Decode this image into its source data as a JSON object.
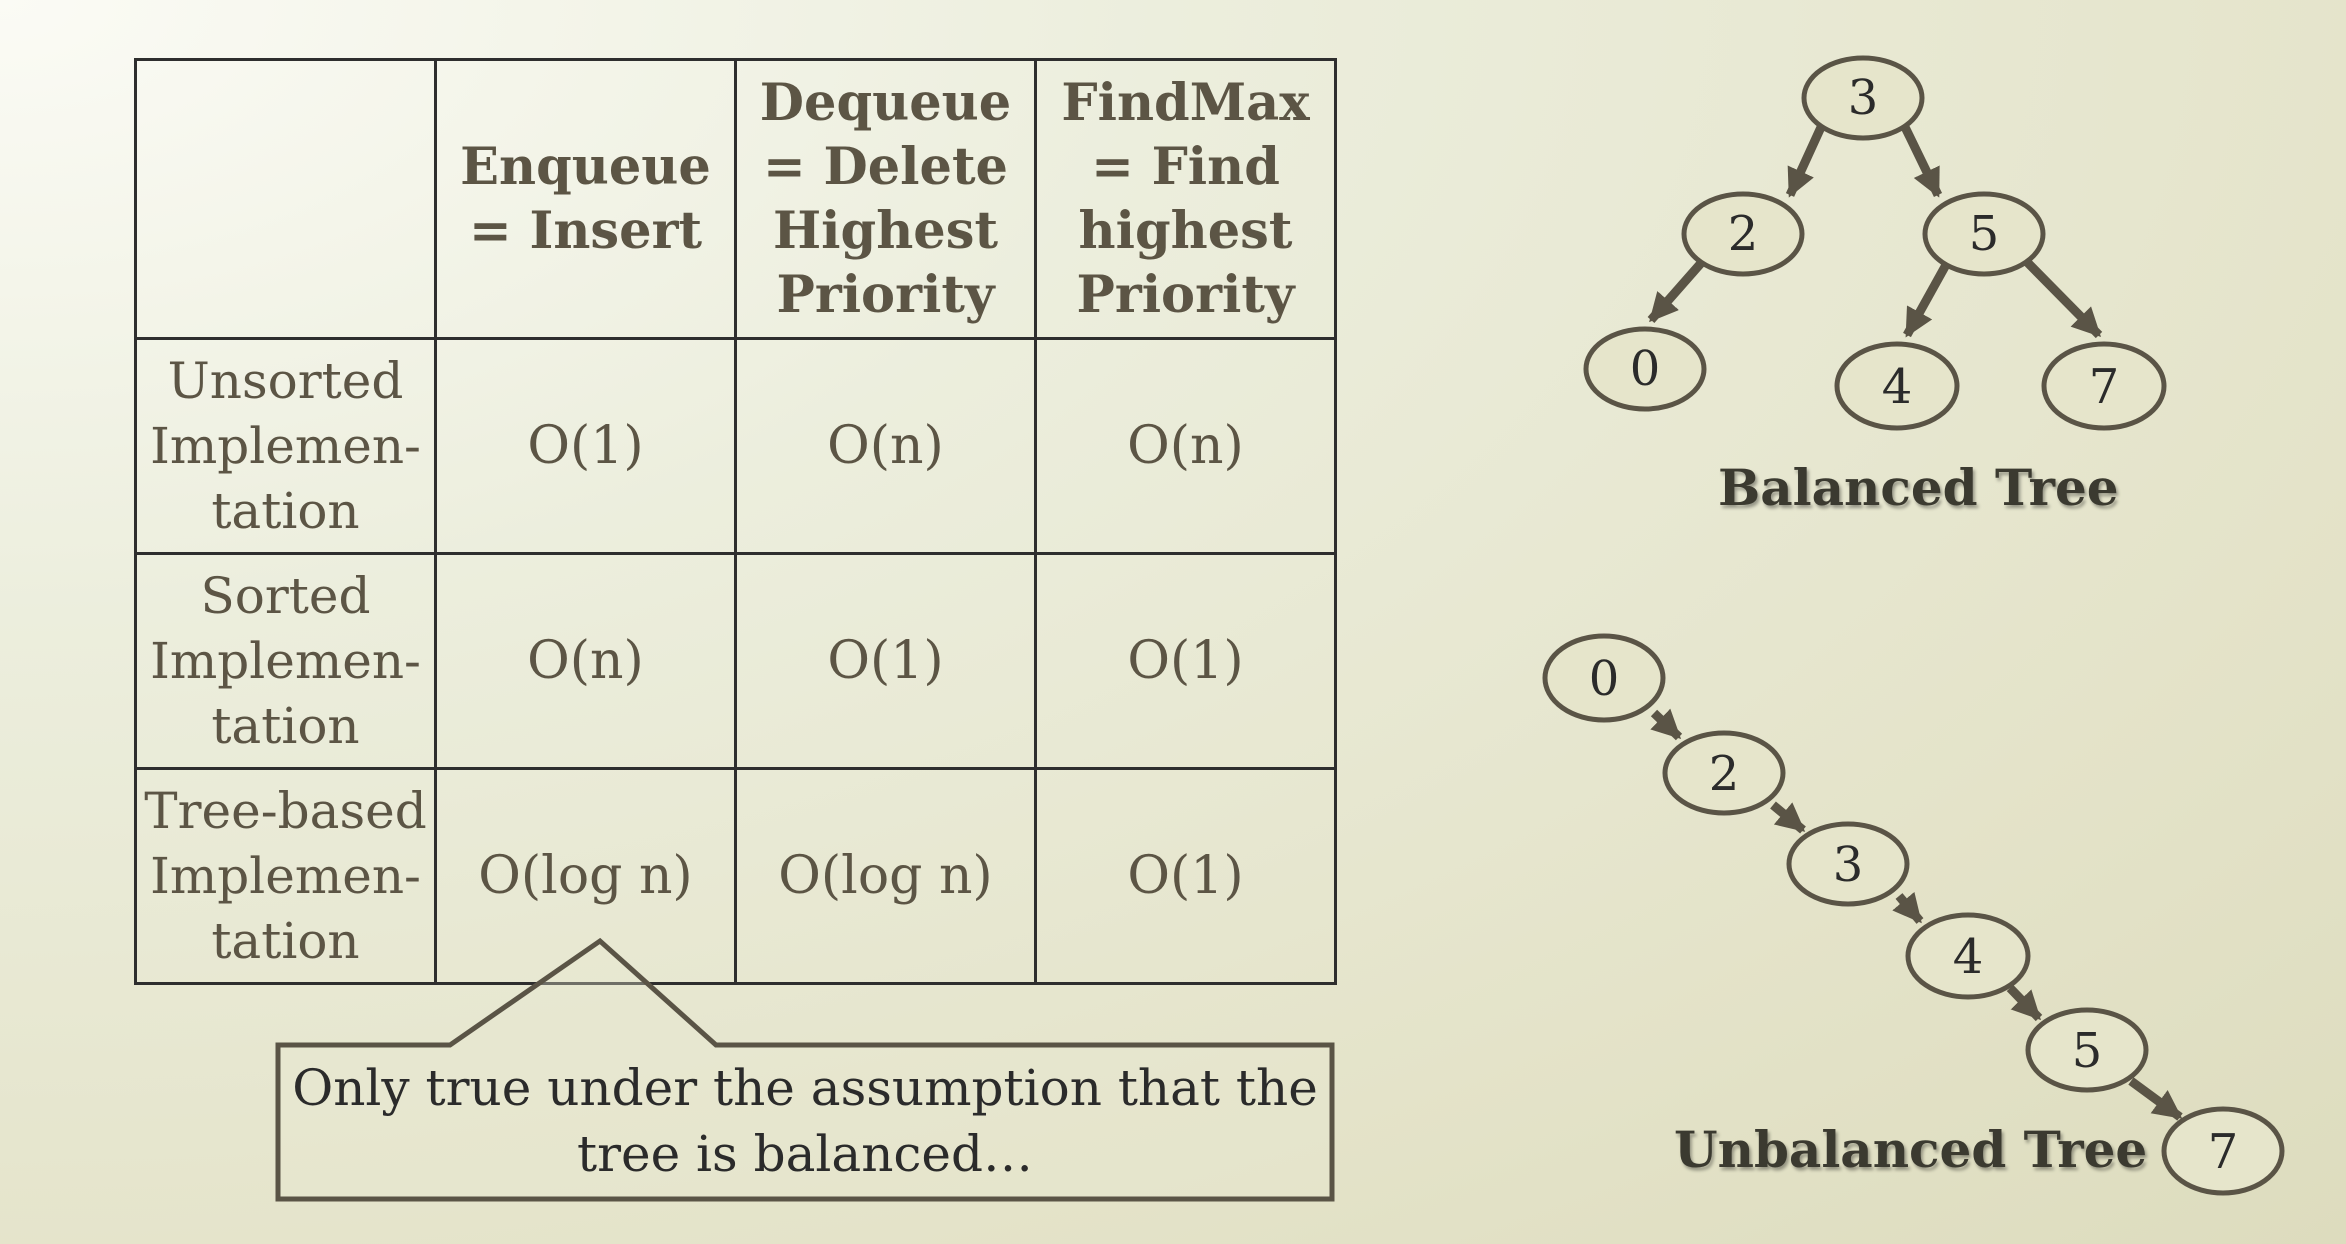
{
  "table": {
    "headers": [
      "",
      "Enqueue\n= Insert",
      "Dequeue\n= Delete\nHighest\nPriority",
      "FindMax\n= Find\nhighest\nPriority"
    ],
    "rows": [
      {
        "label": "Unsorted\nImplemen-\ntation",
        "values": [
          "O(1)",
          "O(n)",
          "O(n)"
        ]
      },
      {
        "label": "Sorted\nImplemen-\ntation",
        "values": [
          "O(n)",
          "O(1)",
          "O(1)"
        ]
      },
      {
        "label": "Tree-based\nImplemen-\ntation",
        "values": [
          "O(log n)",
          "O(log n)",
          "O(1)"
        ]
      }
    ]
  },
  "callout": {
    "text": "Only true under the assumption that the\ntree is balanced…"
  },
  "balanced_tree": {
    "caption": "Balanced Tree",
    "nodes": [
      "3",
      "2",
      "5",
      "0",
      "4",
      "7"
    ]
  },
  "unbalanced_tree": {
    "caption": "Unbalanced Tree",
    "nodes": [
      "0",
      "2",
      "3",
      "4",
      "5",
      "7"
    ]
  },
  "colors": {
    "text": "#5c5545",
    "border": "#2e2e2e",
    "node_stroke": "#5a5446",
    "arrow": "#5a5446"
  }
}
